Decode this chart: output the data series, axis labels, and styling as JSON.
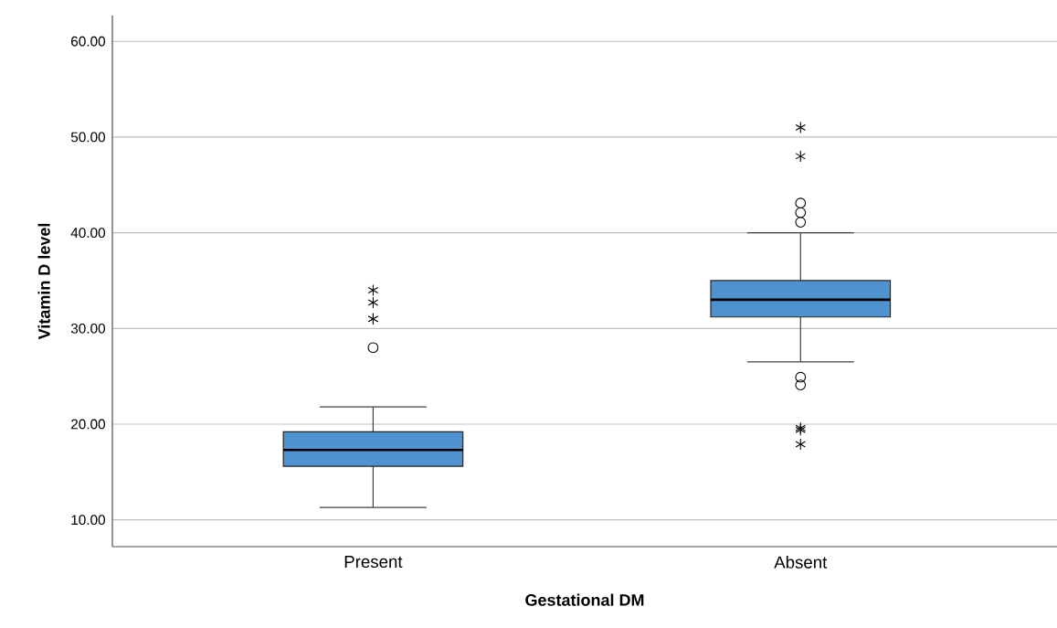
{
  "chart_data": {
    "type": "box",
    "xlabel": "Gestational DM",
    "ylabel": "Vitamin D level",
    "categories": [
      "Present",
      "Absent"
    ],
    "boxes": [
      {
        "low": 11.3,
        "q1": 15.6,
        "median": 17.3,
        "q3": 19.2,
        "high": 21.8,
        "outliers": [
          28.0
        ]
      },
      {
        "low": 26.5,
        "q1": 31.2,
        "median": 33.0,
        "q3": 35.0,
        "high": 40.0,
        "outliers": [
          41.1,
          42.1,
          43.1,
          24.1,
          24.9
        ]
      }
    ],
    "color": "#4f92d0",
    "marker": "circle",
    "series": [
      {
        "type": "scatter",
        "marker": "cross",
        "color": "#000000",
        "x": [
          "Present",
          "Present",
          "Present",
          "Present",
          "Absent",
          "Absent",
          "Absent",
          "Absent",
          "Absent"
        ],
        "values": [
          34.0,
          32.7,
          31.0,
          31.0,
          51.0,
          48.0,
          19.6,
          19.4,
          17.9
        ]
      }
    ],
    "ylim": [
      7.2,
      62.7
    ],
    "yticks": [
      {
        "value": 10,
        "label": "10.00"
      },
      {
        "value": 20,
        "label": "20.00"
      },
      {
        "value": 30,
        "label": "30.00"
      },
      {
        "value": 40,
        "label": "40.00"
      },
      {
        "value": 50,
        "label": "50.00"
      },
      {
        "value": 60,
        "label": "60.00"
      }
    ],
    "grid": "y"
  }
}
